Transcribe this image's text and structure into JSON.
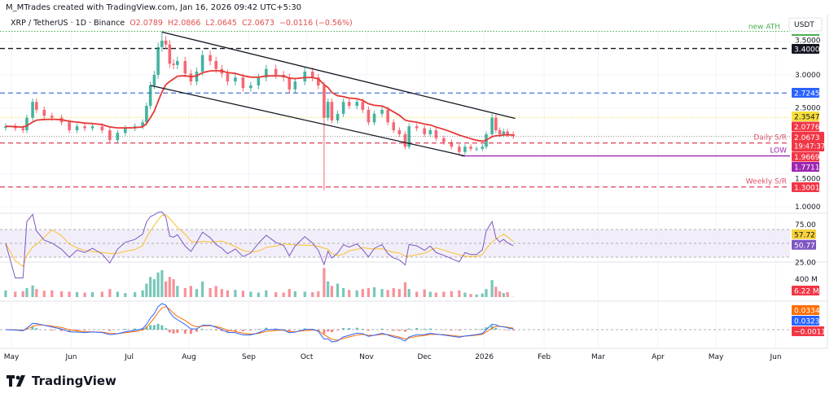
{
  "header": {
    "credit": "M_MTrades created with TradingView.com, Jan 16, 2026 09:42 UTC+5:30",
    "symbol": "XRP / TetherUS · 1D · Binance",
    "o": "O2.0789",
    "h": "H2.0866",
    "l": "L2.0645",
    "c": "C2.0673",
    "chg": "−0.0116 (−0.56%)"
  },
  "footer": {
    "brand": "TradingView",
    "logo_icon": "tradingview-logo-icon"
  },
  "currency": "USDT",
  "colors": {
    "up": "#089981",
    "down": "#f23645",
    "ema": "#e53935",
    "rsi": "#7e57c2",
    "rsi_ma": "#fbc02d",
    "macd": "#2962ff",
    "signal": "#ff6d00"
  },
  "chart_data": {
    "type": "candlestick",
    "interval": "1D",
    "x_ticks": [
      "May",
      "Jun",
      "Jul",
      "Aug",
      "Sep",
      "Oct",
      "Nov",
      "Dec",
      "2026",
      "Feb",
      "Mar",
      "Apr",
      "May",
      "Jun"
    ],
    "x_tick_dates": [
      "2025-05-01",
      "2025-06-01",
      "2025-07-01",
      "2025-08-01",
      "2025-09-01",
      "2025-10-01",
      "2025-11-01",
      "2025-12-01",
      "2026-01-01",
      "2026-02-01",
      "2026-03-01",
      "2026-04-01",
      "2026-05-01",
      "2026-06-01"
    ],
    "y_ticks": [
      "3.5000",
      "3.0000",
      "2.5000",
      "1.5000",
      "1.0000"
    ],
    "y_tick_values": [
      3.5,
      3.0,
      2.5,
      1.5,
      1.0
    ],
    "ylim": [
      0.95,
      3.7
    ],
    "candles": [
      [
        "2025-04-28",
        2.22,
        150
      ],
      [
        "2025-05-03",
        2.19,
        120
      ],
      [
        "2025-05-07",
        2.16,
        130
      ],
      [
        "2025-05-09",
        2.35,
        200
      ],
      [
        "2025-05-12",
        2.59,
        260
      ],
      [
        "2025-05-14",
        2.47,
        180
      ],
      [
        "2025-05-18",
        2.38,
        140
      ],
      [
        "2025-05-22",
        2.35,
        150
      ],
      [
        "2025-05-27",
        2.28,
        130
      ],
      [
        "2025-05-31",
        2.16,
        120
      ],
      [
        "2025-06-04",
        2.22,
        110
      ],
      [
        "2025-06-08",
        2.19,
        100
      ],
      [
        "2025-06-12",
        2.22,
        110
      ],
      [
        "2025-06-17",
        2.16,
        120
      ],
      [
        "2025-06-21",
        2.01,
        180
      ],
      [
        "2025-06-25",
        2.12,
        120
      ],
      [
        "2025-06-29",
        2.19,
        90
      ],
      [
        "2025-07-04",
        2.22,
        110
      ],
      [
        "2025-07-08",
        2.28,
        150
      ],
      [
        "2025-07-10",
        2.53,
        300
      ],
      [
        "2025-07-12",
        2.84,
        450
      ],
      [
        "2025-07-14",
        3.0,
        400
      ],
      [
        "2025-07-16",
        3.42,
        550
      ],
      [
        "2025-07-18",
        3.52,
        600
      ],
      [
        "2025-07-20",
        3.46,
        350
      ],
      [
        "2025-07-22",
        3.17,
        450
      ],
      [
        "2025-07-24",
        3.15,
        400
      ],
      [
        "2025-07-26",
        3.21,
        250
      ],
      [
        "2025-07-30",
        3.02,
        200
      ],
      [
        "2025-08-02",
        2.9,
        250
      ],
      [
        "2025-08-05",
        3.05,
        180
      ],
      [
        "2025-08-08",
        3.3,
        350
      ],
      [
        "2025-08-12",
        3.21,
        200
      ],
      [
        "2025-08-15",
        3.09,
        250
      ],
      [
        "2025-08-18",
        3.02,
        180
      ],
      [
        "2025-08-21",
        2.9,
        150
      ],
      [
        "2025-08-25",
        2.96,
        160
      ],
      [
        "2025-08-29",
        2.8,
        140
      ],
      [
        "2025-09-02",
        2.84,
        120
      ],
      [
        "2025-09-06",
        2.96,
        100
      ],
      [
        "2025-09-10",
        3.09,
        150
      ],
      [
        "2025-09-15",
        3.0,
        110
      ],
      [
        "2025-09-19",
        2.96,
        100
      ],
      [
        "2025-09-22",
        2.78,
        180
      ],
      [
        "2025-09-25",
        2.9,
        130
      ],
      [
        "2025-09-30",
        3.05,
        120
      ],
      [
        "2025-10-04",
        2.96,
        110
      ],
      [
        "2025-10-07",
        2.84,
        130
      ],
      [
        "2025-10-10",
        2.35,
        650
      ],
      [
        "2025-10-12",
        2.59,
        350
      ],
      [
        "2025-10-14",
        2.31,
        250
      ],
      [
        "2025-10-17",
        2.41,
        300
      ],
      [
        "2025-10-20",
        2.59,
        200
      ],
      [
        "2025-10-23",
        2.53,
        160
      ],
      [
        "2025-10-27",
        2.59,
        150
      ],
      [
        "2025-10-30",
        2.47,
        180
      ],
      [
        "2025-11-02",
        2.28,
        200
      ],
      [
        "2025-11-05",
        2.41,
        220
      ],
      [
        "2025-11-09",
        2.47,
        180
      ],
      [
        "2025-11-12",
        2.28,
        160
      ],
      [
        "2025-11-15",
        2.16,
        200
      ],
      [
        "2025-11-18",
        2.1,
        180
      ],
      [
        "2025-11-21",
        1.91,
        330
      ],
      [
        "2025-11-23",
        2.22,
        180
      ],
      [
        "2025-11-27",
        2.19,
        120
      ],
      [
        "2025-12-01",
        2.1,
        170
      ],
      [
        "2025-12-04",
        2.16,
        120
      ],
      [
        "2025-12-07",
        2.04,
        100
      ],
      [
        "2025-12-11",
        1.98,
        120
      ],
      [
        "2025-12-15",
        1.91,
        130
      ],
      [
        "2025-12-19",
        1.83,
        150
      ],
      [
        "2025-12-22",
        1.91,
        100
      ],
      [
        "2025-12-25",
        1.88,
        70
      ],
      [
        "2025-12-28",
        1.88,
        60
      ],
      [
        "2025-12-31",
        1.91,
        80
      ],
      [
        "2026-01-02",
        2.1,
        180
      ],
      [
        "2026-01-05",
        2.35,
        380
      ],
      [
        "2026-01-07",
        2.16,
        230
      ],
      [
        "2026-01-09",
        2.1,
        130
      ],
      [
        "2026-01-11",
        2.14,
        90
      ],
      [
        "2026-01-13",
        2.1,
        110
      ],
      [
        "2026-01-16",
        2.0673,
        6.22
      ]
    ],
    "wick_overrides": [
      {
        "date": "2025-07-18",
        "high": 3.66
      },
      {
        "date": "2025-10-10",
        "low": 1.25
      },
      {
        "date": "2025-12-19",
        "low": 1.77
      },
      {
        "date": "2026-01-05",
        "high": 2.41
      }
    ],
    "levels": [
      {
        "price": 3.66,
        "label": "new ATH",
        "style": "dotted",
        "color": "#4caf50"
      },
      {
        "price": 3.4,
        "label": "3.4000",
        "style": "dashed",
        "color": "#131722",
        "box": "#131722"
      },
      {
        "price": 2.7245,
        "label": "2.7245",
        "style": "dashed",
        "color": "#5b7fdc",
        "box": "#2962ff"
      },
      {
        "price": 2.3547,
        "label": "2.3547",
        "style": "dotted",
        "color": "#f5e050",
        "box": "#f7e03a",
        "dark": true
      },
      {
        "price": 1.9669,
        "label": "1.9669",
        "style": "dashed",
        "color": "#e0506a",
        "box": "#f23645",
        "note": "Daily S/R"
      },
      {
        "price": 1.7711,
        "label": "1.7711",
        "style": "solid",
        "color": "#9c27b0",
        "box": "#9c27b0",
        "note": "LOW",
        "from": "2025-12-20"
      },
      {
        "price": 1.3001,
        "label": "1.3001",
        "style": "dashed",
        "color": "#e0506a",
        "box": "#f23645",
        "note": "Weekly S/R"
      }
    ],
    "price_tags": [
      {
        "price": 2.0776,
        "label": "2.0776",
        "box": "#f23645"
      }
    ],
    "last_price": {
      "price": 2.0673,
      "label": "2.0673",
      "countdown": "19:47:37",
      "box": "#f23645"
    },
    "channel": {
      "upper": [
        [
          "2025-07-18",
          3.65
        ],
        [
          "2026-01-17",
          2.34
        ]
      ],
      "lower": [
        [
          "2025-07-12",
          2.84
        ],
        [
          "2025-12-22",
          1.77
        ]
      ]
    },
    "rsi": {
      "ticks": [
        "75.00",
        "25.00"
      ],
      "rsi_label": "57.72",
      "ma_label": "50.77",
      "band": [
        30,
        70
      ]
    },
    "volume": {
      "tick": "400 M",
      "last_label": "6.22 M"
    },
    "macd": {
      "signal_label": "0.0334",
      "macd_label": "0.0323",
      "hist_label": "−0.0011"
    }
  }
}
